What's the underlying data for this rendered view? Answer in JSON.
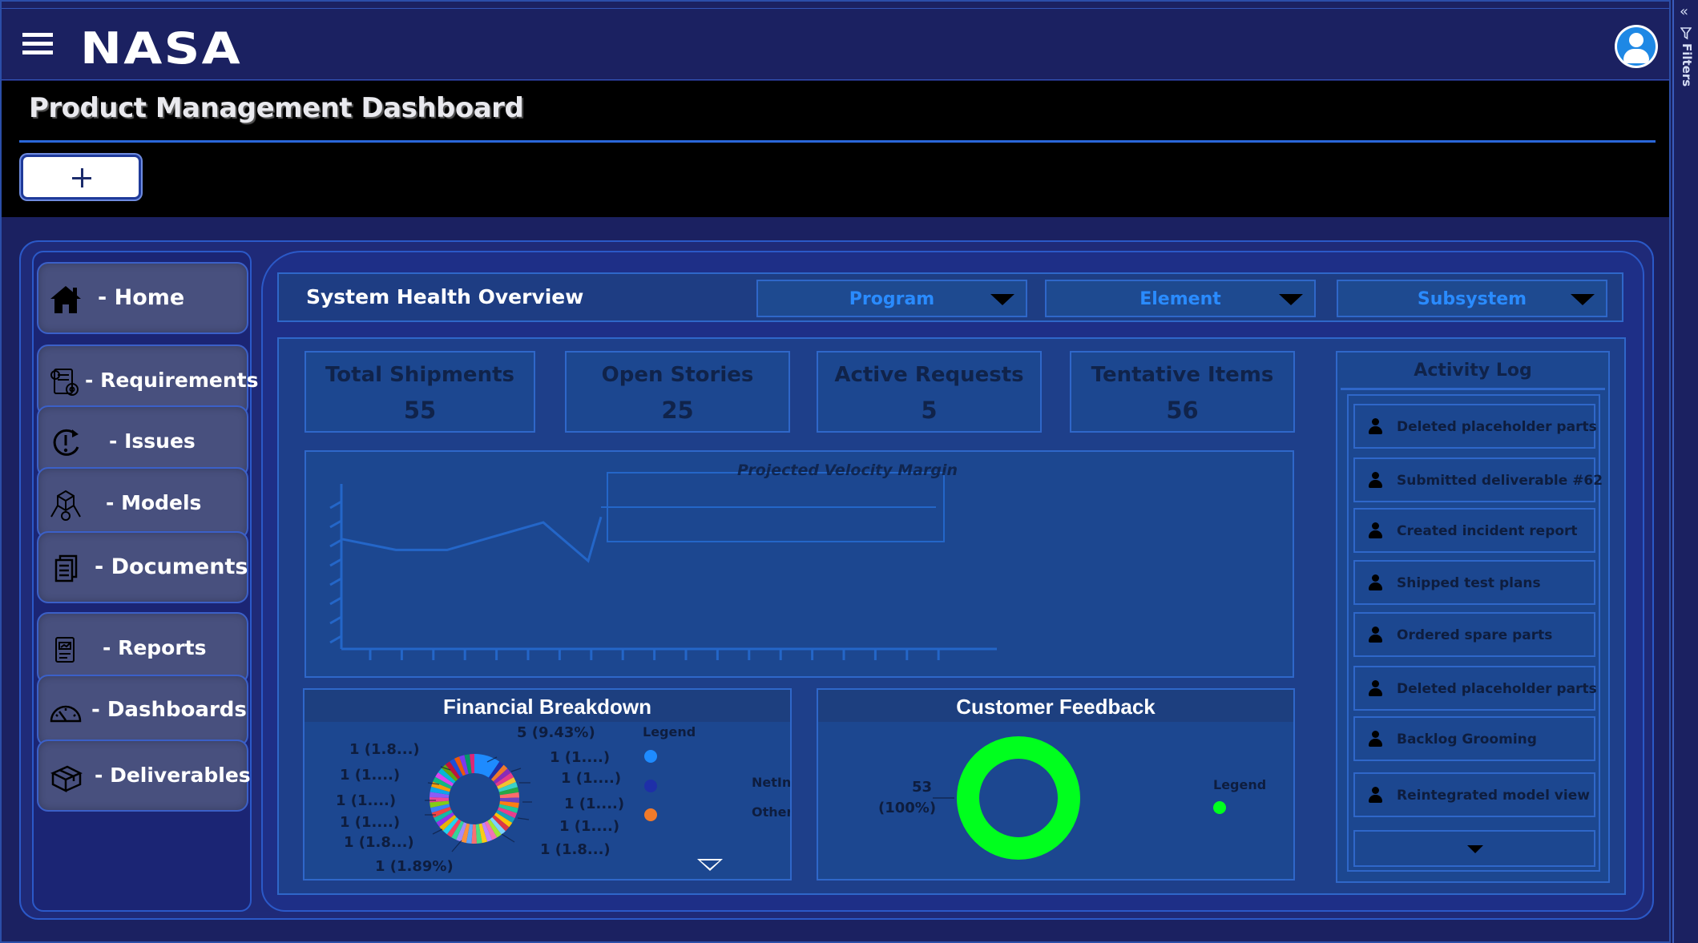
{
  "app": {
    "logo_text": "NASA",
    "page_title": "Product Management Dashboard",
    "add_label": "+"
  },
  "filters_rail": {
    "label": "Filters"
  },
  "sidebar": {
    "items": [
      {
        "label": "- Home",
        "icon": "home-icon"
      },
      {
        "label": "- Requirements",
        "icon": "requirements-icon"
      },
      {
        "label": "- Issues",
        "icon": "issues-icon"
      },
      {
        "label": "- Models",
        "icon": "models-icon"
      },
      {
        "label": "- Documents",
        "icon": "documents-icon"
      },
      {
        "label": "- Reports",
        "icon": "reports-icon"
      },
      {
        "label": "- Dashboards",
        "icon": "dashboards-icon"
      },
      {
        "label": "- Deliverables",
        "icon": "deliverables-icon"
      }
    ]
  },
  "overview": {
    "title": "System Health Overview",
    "filters": [
      "Program",
      "Element",
      "Subsystem"
    ]
  },
  "kpis": [
    {
      "label": "Total Shipments",
      "value": "55"
    },
    {
      "label": "Open Stories",
      "value": "25"
    },
    {
      "label": "Active Requests",
      "value": "5"
    },
    {
      "label": "Tentative Items",
      "value": "56"
    }
  ],
  "velocity": {
    "title": "Projected Velocity Margin"
  },
  "financial": {
    "title": "Financial Breakdown",
    "legend_title": "Legend",
    "legend_items": [
      "NetInc",
      "OtherC"
    ],
    "slice_labels": [
      "5 (9.43%)",
      "1 (1....)",
      "1 (1....)",
      "1 (1....)",
      "1 (1....)",
      "1 (1.8...)",
      "1 (1.89%)",
      "1 (1.8...)",
      "1 (1....)",
      "1 (1....)",
      "1 (1....)",
      "1 (1.8...)"
    ]
  },
  "feedback": {
    "title": "Customer Feedback",
    "legend_title": "Legend",
    "slice_value": "53",
    "slice_percent": "(100%)"
  },
  "activity": {
    "title": "Activity Log",
    "items": [
      "Deleted placeholder parts",
      "Submitted deliverable #62",
      "Created incident report",
      "Shipped test plans",
      "Ordered spare parts",
      "Deleted placeholder parts",
      "Backlog Grooming",
      "Reintegrated model view"
    ]
  },
  "colors": {
    "accent_blue": "#2a8bff",
    "panel": "#1c4790",
    "border": "#2f67c9",
    "feedback_green": "#00ff1e",
    "legend_dot_1": "#1e8bff",
    "legend_dot_2": "#1e2fa8",
    "legend_dot_3": "#f07a2a"
  },
  "chart_data": [
    {
      "type": "line",
      "title": "Projected Velocity Margin",
      "series": [
        {
          "values": [
            4.0,
            3.6,
            3.6,
            4.1,
            4.6,
            3.2,
            4.8
          ]
        }
      ]
    },
    {
      "type": "pie",
      "title": "Financial Breakdown",
      "values": [
        5,
        1,
        1,
        1,
        1,
        1,
        1,
        1,
        1,
        1,
        1,
        1,
        1,
        1,
        1,
        1,
        1,
        1,
        1,
        1,
        1,
        1,
        1,
        1,
        1,
        1,
        1,
        1,
        1,
        1,
        1,
        1,
        1,
        1,
        1,
        1,
        1,
        1,
        1,
        1,
        1,
        1,
        1,
        1,
        1,
        1,
        1,
        1,
        1
      ]
    },
    {
      "type": "pie",
      "title": "Customer Feedback",
      "values": [
        53
      ],
      "labels": [
        "53 (100%)"
      ]
    }
  ]
}
